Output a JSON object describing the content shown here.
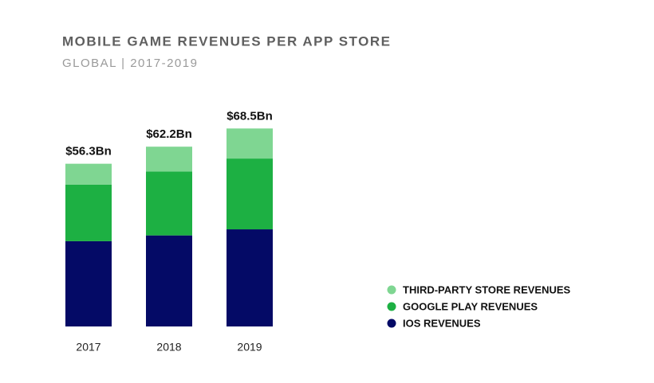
{
  "chart_data": {
    "type": "stacked-bar",
    "title": "MOBILE GAME REVENUES PER APP STORE",
    "subtitle": "GLOBAL | 2017-2019",
    "categories": [
      "2017",
      "2018",
      "2019"
    ],
    "series": [
      {
        "name": "IOS REVENUES",
        "color": "#040a66",
        "values": [
          29.5,
          31.5,
          33.6
        ]
      },
      {
        "name": "GOOGLE PLAY REVENUES",
        "color": "#1db043",
        "values": [
          19.6,
          22.1,
          24.5
        ]
      },
      {
        "name": "THIRD-PARTY STORE REVENUES",
        "color": "#7fd692",
        "values": [
          7.2,
          8.6,
          10.4
        ]
      }
    ],
    "totals": {
      "values": [
        56.3,
        62.2,
        68.5
      ],
      "value_labels": [
        "$56.3Bn",
        "$62.2Bn",
        "$68.5Bn"
      ]
    }
  }
}
